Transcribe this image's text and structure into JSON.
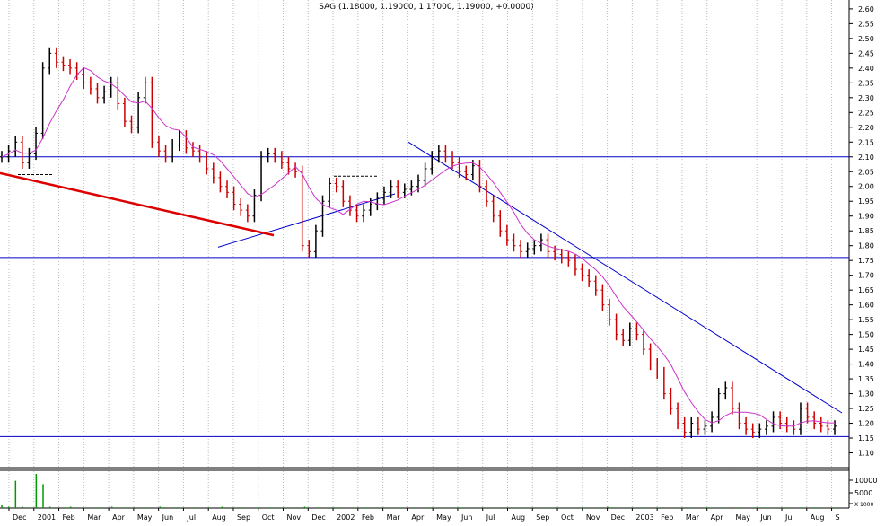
{
  "chart_data": {
    "type": "line",
    "title": "SAG (1.18000, 1.19000, 1.17000, 1.19000, +0.0000)",
    "xlabel": "",
    "ylabel": "",
    "ylim": [
      1.05,
      2.63
    ],
    "yticks": [
      "2.60",
      "2.55",
      "2.50",
      "2.45",
      "2.40",
      "2.35",
      "2.30",
      "2.25",
      "2.20",
      "2.15",
      "2.10",
      "2.05",
      "2.00",
      "1.95",
      "1.90",
      "1.85",
      "1.80",
      "1.75",
      "1.70",
      "1.65",
      "1.60",
      "1.55",
      "1.50",
      "1.45",
      "1.40",
      "1.35",
      "1.30",
      "1.25",
      "1.20",
      "1.15",
      "1.10"
    ],
    "xticks": [
      "Dec",
      "2001",
      "Feb",
      "Mar",
      "Apr",
      "May",
      "Jun",
      "Jul",
      "Aug",
      "Sep",
      "Oct",
      "Nov",
      "Dec",
      "2002",
      "Feb",
      "Mar",
      "Apr",
      "May",
      "Jun",
      "Jul",
      "Aug",
      "Sep",
      "Oct",
      "Nov",
      "Dec",
      "2003",
      "Feb",
      "Mar",
      "Apr",
      "May",
      "Jun",
      "Jul",
      "Aug",
      "S"
    ],
    "grid": true,
    "price": [
      2.1,
      2.12,
      2.15,
      2.08,
      2.11,
      2.18,
      2.4,
      2.45,
      2.42,
      2.41,
      2.4,
      2.38,
      2.35,
      2.33,
      2.3,
      2.32,
      2.35,
      2.28,
      2.22,
      2.2,
      2.3,
      2.35,
      2.15,
      2.12,
      2.1,
      2.14,
      2.17,
      2.13,
      2.12,
      2.1,
      2.06,
      2.03,
      2.0,
      1.98,
      1.94,
      1.92,
      1.9,
      1.97,
      2.1,
      2.11,
      2.1,
      2.08,
      2.06,
      2.05,
      1.8,
      1.78,
      1.85,
      1.95,
      2.01,
      2.0,
      1.95,
      1.92,
      1.9,
      1.92,
      1.94,
      1.96,
      1.98,
      2.0,
      1.98,
      1.99,
      2.0,
      2.02,
      2.06,
      2.1,
      2.12,
      2.1,
      2.08,
      2.05,
      2.04,
      2.07,
      2.0,
      1.95,
      1.9,
      1.85,
      1.82,
      1.8,
      1.78,
      1.79,
      1.8,
      1.82,
      1.78,
      1.77,
      1.76,
      1.75,
      1.72,
      1.7,
      1.68,
      1.65,
      1.6,
      1.55,
      1.5,
      1.48,
      1.52,
      1.5,
      1.45,
      1.4,
      1.37,
      1.3,
      1.25,
      1.2,
      1.17,
      1.2,
      1.18,
      1.19,
      1.22,
      1.3,
      1.32,
      1.25,
      1.2,
      1.18,
      1.17,
      1.18,
      1.19,
      1.22,
      1.2,
      1.19,
      1.18,
      1.25,
      1.22,
      1.2,
      1.19,
      1.18,
      1.19
    ],
    "price_color": "#cc0000",
    "ma_color": "#cc33cc",
    "volume": [
      4,
      2,
      40,
      2,
      1,
      50,
      35,
      2,
      1,
      1,
      2,
      1,
      1,
      1,
      1,
      1,
      2,
      1,
      1,
      1,
      1,
      1,
      1,
      2,
      1,
      1,
      1,
      1,
      1,
      1,
      1,
      1,
      2,
      1,
      1,
      1,
      1,
      1,
      1,
      1,
      1,
      1,
      1,
      1,
      2,
      1,
      1,
      1,
      1,
      1,
      1,
      1,
      1,
      1,
      1,
      1,
      1,
      1,
      1,
      1,
      1,
      1,
      1,
      1,
      1,
      1,
      1,
      1,
      1,
      1,
      1,
      1,
      1,
      1,
      1,
      1,
      1,
      1,
      1,
      1,
      1,
      1,
      1,
      1,
      1,
      1,
      1,
      1,
      2,
      1,
      1,
      1,
      1,
      1,
      1,
      1,
      1,
      1,
      1,
      1,
      1,
      1,
      1,
      1,
      1,
      1,
      1,
      1,
      1,
      1,
      1,
      1,
      1,
      1,
      1,
      1,
      1,
      1,
      1,
      1,
      1,
      1
    ],
    "volume_ticks": [
      "10000",
      "5000",
      "X 1000"
    ],
    "hlines": [
      2.1,
      1.76,
      1.155
    ],
    "hline_color": "#0000cc",
    "trend_color": "#0000cc",
    "support_color": "#dd0000"
  }
}
